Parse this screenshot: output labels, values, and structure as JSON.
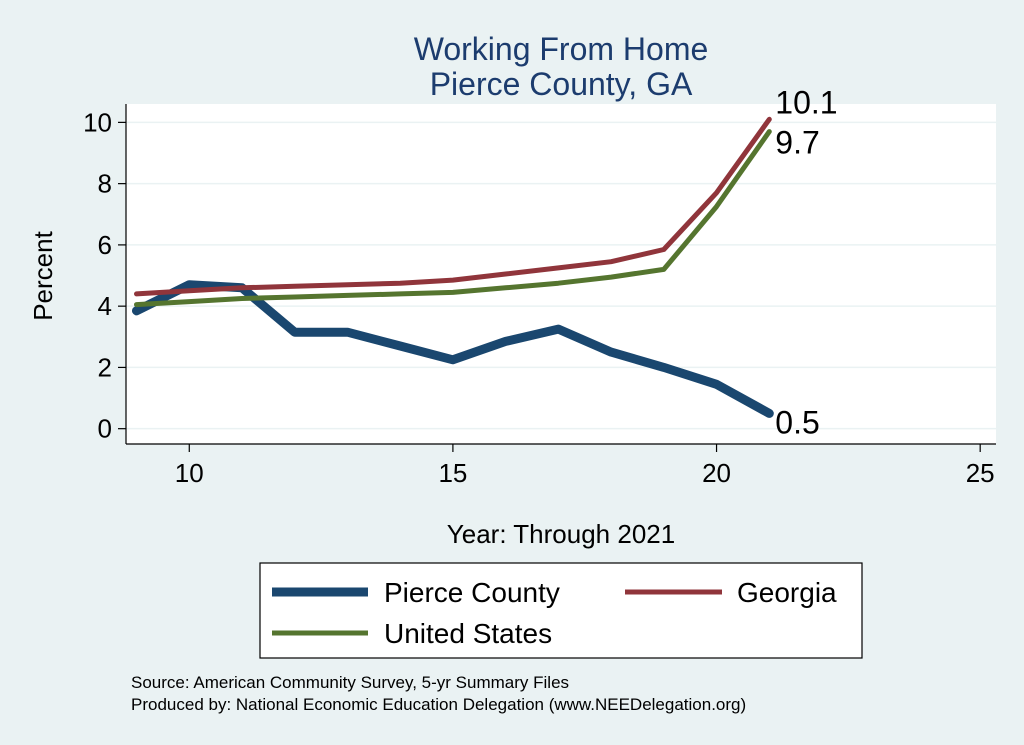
{
  "chart_data": {
    "type": "line",
    "title": [
      "Working From Home",
      "Pierce County, GA"
    ],
    "xlabel": "Year: Through 2021",
    "ylabel": "Percent",
    "xlim": [
      8.8,
      25.3
    ],
    "ylim": [
      -0.5,
      10.6
    ],
    "xticks": [
      10,
      15,
      20,
      25
    ],
    "yticks": [
      0,
      2,
      4,
      6,
      8,
      10
    ],
    "grid": true,
    "legend_position": "bottom",
    "series": [
      {
        "name": "Pierce County",
        "color": "#1a476f",
        "x": [
          9,
          10,
          11,
          12,
          13,
          14,
          15,
          16,
          17,
          18,
          19,
          20,
          21
        ],
        "y": [
          3.85,
          4.7,
          4.6,
          3.15,
          3.15,
          2.7,
          2.25,
          2.85,
          3.25,
          2.5,
          2.0,
          1.45,
          0.5
        ],
        "end_label": "0.5"
      },
      {
        "name": "Georgia",
        "color": "#90353b",
        "x": [
          9,
          10,
          11,
          12,
          13,
          14,
          15,
          16,
          17,
          18,
          19,
          20,
          21
        ],
        "y": [
          4.4,
          4.5,
          4.6,
          4.65,
          4.7,
          4.75,
          4.85,
          5.05,
          5.25,
          5.45,
          5.85,
          7.7,
          10.1
        ],
        "end_label": "10.1"
      },
      {
        "name": "United States",
        "color": "#55752f",
        "x": [
          9,
          10,
          11,
          12,
          13,
          14,
          15,
          16,
          17,
          18,
          19,
          20,
          21
        ],
        "y": [
          4.05,
          4.15,
          4.25,
          4.3,
          4.35,
          4.4,
          4.45,
          4.6,
          4.75,
          4.95,
          5.2,
          7.25,
          9.7
        ],
        "end_label": "9.7"
      }
    ]
  },
  "notes": [
    "Source: American Community Survey, 5-yr Summary Files",
    "Produced by: National Economic Education Delegation (www.NEEDelegation.org)"
  ]
}
